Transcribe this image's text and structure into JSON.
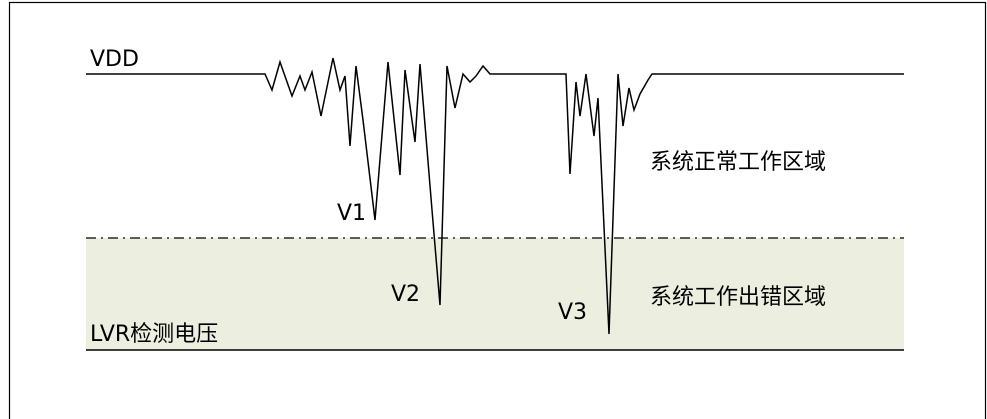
{
  "labels": {
    "vdd": "VDD",
    "v1": "V1",
    "v2": "V2",
    "v3": "V3",
    "normal_region": "系统正常工作区域",
    "error_region": "系统工作出错区域",
    "lvr_level": "LVR检测电压"
  },
  "colors": {
    "error_region_fill": "#ecefdf",
    "line": "#000000",
    "border": "#000000"
  }
}
